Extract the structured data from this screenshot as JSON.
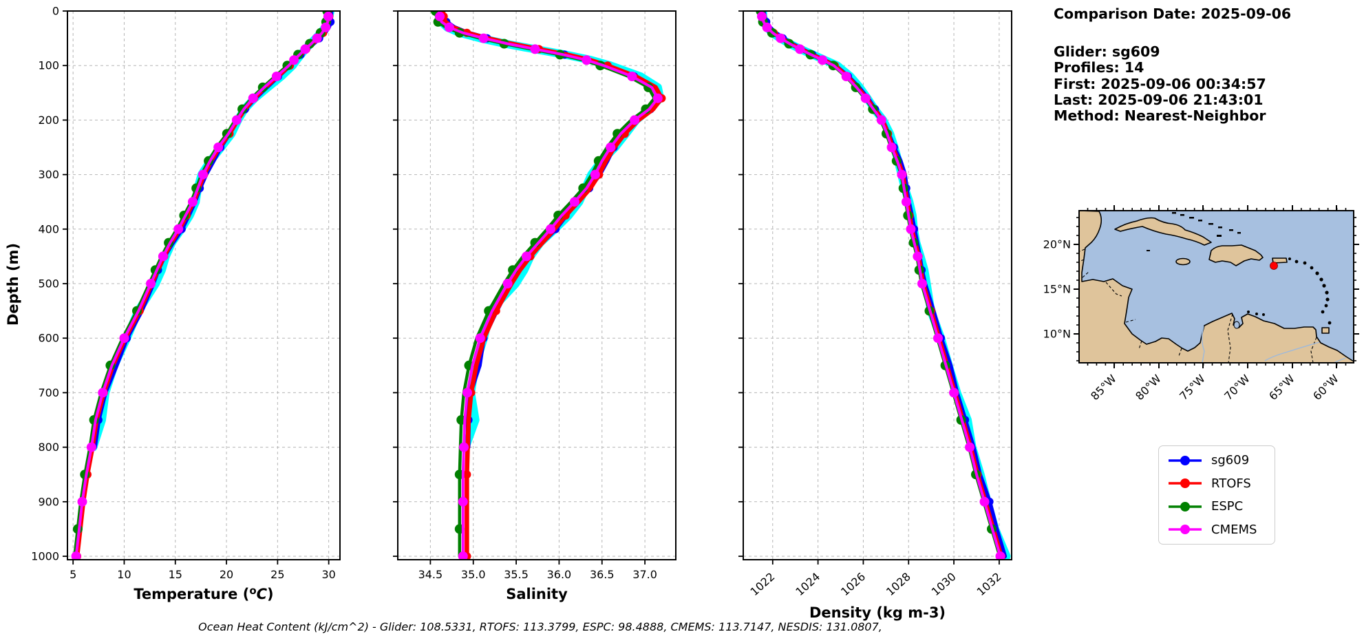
{
  "info": {
    "comparison_date": "Comparison Date: 2025-09-06",
    "glider": "Glider: sg609",
    "profiles": "Profiles: 14",
    "first": "First: 2025-09-06 00:34:57",
    "last": "Last: 2025-09-06 21:43:01",
    "method": "Method: Nearest-Neighbor"
  },
  "legend": {
    "items": [
      {
        "label": "sg609",
        "color": "#0000ff"
      },
      {
        "label": "RTOFS",
        "color": "#ff0000"
      },
      {
        "label": "ESPC",
        "color": "#008000"
      },
      {
        "label": "CMEMS",
        "color": "#ff00ff"
      }
    ]
  },
  "footer": {
    "text": "Ocean Heat Content (kJ/cm^2) - Glider: 108.5331,  RTOFS: 113.3799,  ESPC: 98.4888,  CMEMS: 113.7147,  NESDIS: 131.0807,"
  },
  "chart_data": {
    "type": "line",
    "description": "Vertical ocean profiles vs depth; four nearly-overlapping series per panel plus cyan raw glider points behind the sg609 line",
    "ylabel": "Depth (m)",
    "ylim": [
      0,
      1000
    ],
    "depth_ticks": [
      0,
      100,
      200,
      300,
      400,
      500,
      600,
      700,
      800,
      900,
      1000
    ],
    "depth_tick_labels": [
      "0",
      "100",
      "200",
      "300",
      "400",
      "500",
      "600",
      "700",
      "800",
      "900",
      "1000"
    ],
    "depths": [
      0,
      10,
      20,
      30,
      40,
      50,
      60,
      70,
      80,
      90,
      100,
      120,
      140,
      160,
      180,
      200,
      225,
      250,
      275,
      300,
      325,
      350,
      375,
      400,
      425,
      450,
      475,
      500,
      550,
      600,
      650,
      700,
      750,
      800,
      850,
      900,
      950,
      1000
    ],
    "raw_band": {
      "name": "glider-raw-points",
      "color": "#00ffff"
    },
    "grid": {
      "on": true,
      "color": "#b5b5b5",
      "style": "dashed"
    },
    "charts": [
      {
        "id": "temperature",
        "xlabel_parts": {
          "prefix": "Temperature (",
          "sup": "o",
          "italic": "C",
          "suffix": ")"
        },
        "xticks": [
          5,
          10,
          15,
          20,
          25,
          30
        ],
        "xtick_labels": [
          "5",
          "10",
          "15",
          "20",
          "25",
          "30"
        ],
        "xlim": [
          4.45,
          31.1
        ],
        "values": [
          30.0,
          29.95,
          29.9,
          29.7,
          29.35,
          28.85,
          28.3,
          27.7,
          27.15,
          26.6,
          26.1,
          24.9,
          23.7,
          22.6,
          21.7,
          21.0,
          20.2,
          19.2,
          18.4,
          17.7,
          17.2,
          16.7,
          16.0,
          15.3,
          14.5,
          13.8,
          13.2,
          12.6,
          11.4,
          10.0,
          8.8,
          7.9,
          7.2,
          6.8,
          6.3,
          5.9,
          5.6,
          5.3
        ],
        "series": [
          {
            "name": "sg609",
            "color": "#0000ff",
            "offset": 0.12,
            "end_depth": 800
          },
          {
            "name": "RTOFS",
            "color": "#ff0000",
            "offset": 0.1,
            "end_depth": 1000
          },
          {
            "name": "ESPC",
            "color": "#008000",
            "offset": -0.15,
            "end_depth": 1000
          },
          {
            "name": "CMEMS",
            "color": "#ff00ff",
            "offset": 0.0,
            "end_depth": 1000
          }
        ]
      },
      {
        "id": "salinity",
        "xlabel": "Salinity",
        "xticks": [
          34.5,
          35.0,
          35.5,
          36.0,
          36.5,
          37.0
        ],
        "xtick_labels": [
          "34.5",
          "35.0",
          "35.5",
          "36.0",
          "36.5",
          "37.0"
        ],
        "xlim": [
          34.12,
          37.36
        ],
        "values": [
          34.6,
          34.61,
          34.63,
          34.72,
          34.88,
          35.12,
          35.4,
          35.72,
          36.05,
          36.32,
          36.52,
          36.85,
          37.08,
          37.15,
          37.05,
          36.88,
          36.72,
          36.6,
          36.5,
          36.42,
          36.32,
          36.18,
          36.03,
          35.9,
          35.76,
          35.62,
          35.5,
          35.4,
          35.22,
          35.08,
          34.99,
          34.93,
          34.9,
          34.89,
          34.88,
          34.88,
          34.88,
          34.88
        ],
        "series": [
          {
            "name": "sg609",
            "color": "#0000ff",
            "offset": 0.02,
            "end_depth": 800
          },
          {
            "name": "RTOFS",
            "color": "#ff0000",
            "offset": 0.045,
            "end_depth": 1000
          },
          {
            "name": "ESPC",
            "color": "#008000",
            "offset": -0.04,
            "end_depth": 1000
          },
          {
            "name": "CMEMS",
            "color": "#ff00ff",
            "offset": 0.0,
            "end_depth": 1000
          }
        ]
      },
      {
        "id": "density",
        "xlabel": "Density (kg m-3)",
        "xticks": [
          1022,
          1024,
          1026,
          1028,
          1030,
          1032
        ],
        "xtick_labels": [
          "1022",
          "1024",
          "1026",
          "1028",
          "1030",
          "1032"
        ],
        "xlim": [
          1020.7,
          1032.55
        ],
        "rotate_ticks": 42,
        "values": [
          1021.5,
          1021.52,
          1021.6,
          1021.75,
          1022.0,
          1022.35,
          1022.75,
          1023.2,
          1023.7,
          1024.2,
          1024.7,
          1025.25,
          1025.7,
          1026.1,
          1026.45,
          1026.8,
          1027.05,
          1027.25,
          1027.5,
          1027.7,
          1027.8,
          1027.9,
          1028.0,
          1028.1,
          1028.25,
          1028.4,
          1028.5,
          1028.6,
          1028.95,
          1029.3,
          1029.65,
          1030.0,
          1030.35,
          1030.7,
          1031.0,
          1031.35,
          1031.7,
          1032.05
        ],
        "series": [
          {
            "name": "sg609",
            "color": "#0000ff",
            "offset": 0.06,
            "end_depth": 1000
          },
          {
            "name": "RTOFS",
            "color": "#ff0000",
            "offset": 0.04,
            "end_depth": 1000
          },
          {
            "name": "ESPC",
            "color": "#008000",
            "offset": -0.03,
            "end_depth": 1000
          },
          {
            "name": "CMEMS",
            "color": "#ff00ff",
            "offset": 0.0,
            "end_depth": 1000
          }
        ]
      }
    ]
  },
  "map": {
    "ocean_color": "#a7c0e0",
    "land_color": "#dfc49b",
    "coast_color": "#000000",
    "river_color": "#9db9dc",
    "lon_labels": [
      "85°W",
      "80°W",
      "75°W",
      "70°W",
      "65°W",
      "60°W"
    ],
    "lat_labels": [
      "20°N",
      "15°N",
      "10°N"
    ],
    "marker": {
      "name": "glider-location",
      "color": "#ff0000"
    }
  }
}
